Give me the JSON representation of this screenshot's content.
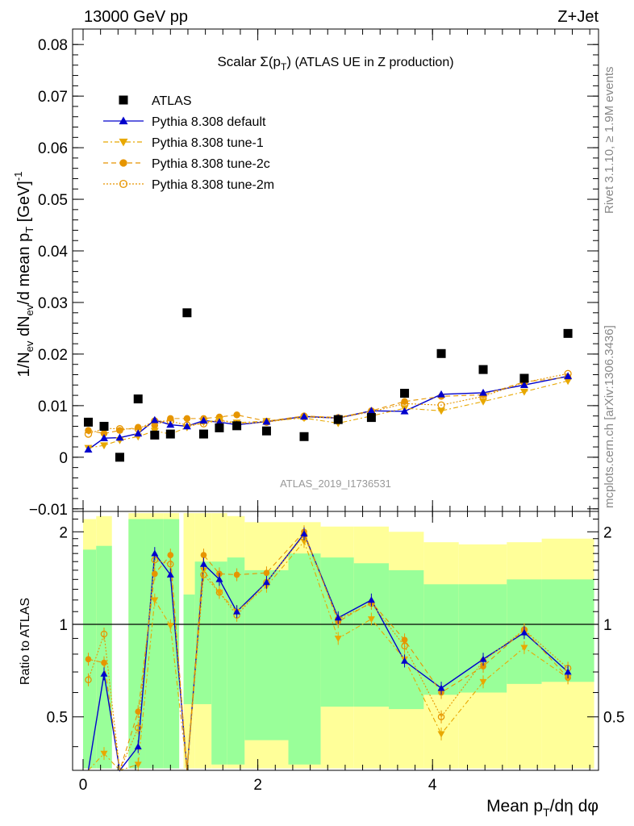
{
  "header": {
    "left": "13000 GeV pp",
    "right": "Z+Jet"
  },
  "side_labels": {
    "rivet": "Rivet 3.1.10, ≥ 1.9M events",
    "mcplots": "mcplots.cern.ch [arXiv:1306.3436]"
  },
  "chart_data": [
    {
      "panel": "main",
      "type": "scatter",
      "title": "Scalar Σ(p_T) (ATLAS UE in Z production)",
      "ylabel": "1/N_ev dN_ev/d mean p_T [GeV]^-1",
      "analysis_label": "ATLAS_2019_I1736531",
      "xlim": [
        -0.12,
        5.9
      ],
      "ylim": [
        -0.0105,
        0.083
      ],
      "y_ticks": [
        "0.08",
        "0.07",
        "0.06",
        "0.05",
        "0.04",
        "0.03",
        "0.02",
        "0.01",
        "0",
        "−0.01"
      ],
      "y_tick_values": [
        0.08,
        0.07,
        0.06,
        0.05,
        0.04,
        0.03,
        0.02,
        0.01,
        0,
        -0.01
      ],
      "x": [
        0.06,
        0.24,
        0.42,
        0.63,
        0.82,
        1.0,
        1.19,
        1.38,
        1.56,
        1.76,
        2.1,
        2.53,
        2.92,
        3.3,
        3.68,
        4.1,
        4.58,
        5.05,
        5.55
      ],
      "series": [
        {
          "name": "ATLAS",
          "style": "data",
          "color": "#000000",
          "values": [
            0.0068,
            0.006,
            0.0,
            0.0113,
            0.0043,
            0.0045,
            0.028,
            0.0045,
            0.0057,
            0.0061,
            0.0051,
            0.004,
            0.0073,
            0.0077,
            0.0124,
            0.0201,
            0.017,
            0.0153,
            0.024
          ]
        },
        {
          "name": "Pythia 8.308 default",
          "style": "triangle-up",
          "color": "#0000cc",
          "values": [
            0.0015,
            0.0037,
            0.0038,
            0.0046,
            0.0072,
            0.0063,
            0.006,
            0.0071,
            0.0068,
            0.0063,
            0.0069,
            0.0079,
            0.0076,
            0.009,
            0.0089,
            0.0122,
            0.0125,
            0.014,
            0.0157
          ]
        },
        {
          "name": "Pythia 8.308 tune-1",
          "style": "triangle-down",
          "color": "#e8a800",
          "values": [
            0.0018,
            0.0023,
            0.0033,
            0.004,
            0.0051,
            0.0045,
            0.0058,
            0.0068,
            0.0072,
            0.0067,
            0.007,
            0.0076,
            0.0066,
            0.008,
            0.0095,
            0.009,
            0.0108,
            0.0127,
            0.0148
          ]
        },
        {
          "name": "Pythia 8.308 tune-2c",
          "style": "circle-filled",
          "color": "#e69500",
          "values": [
            0.0052,
            0.0046,
            0.0052,
            0.0058,
            0.0062,
            0.0075,
            0.0075,
            0.0075,
            0.0078,
            0.0082,
            0.007,
            0.008,
            0.0077,
            0.009,
            0.0108,
            0.0118,
            0.0121,
            0.0146,
            0.0155
          ]
        },
        {
          "name": "Pythia 8.308 tune-2m",
          "style": "circle-open",
          "color": "#e69500",
          "values": [
            0.0045,
            0.0056,
            0.0055,
            0.0055,
            0.007,
            0.007,
            0.0062,
            0.0065,
            0.0072,
            0.0065,
            0.0068,
            0.0078,
            0.0076,
            0.0088,
            0.0104,
            0.0101,
            0.0118,
            0.0145,
            0.0162
          ]
        }
      ]
    },
    {
      "panel": "ratio",
      "type": "line",
      "ylabel": "Ratio to ATLAS",
      "xlabel": "Mean p_T/dη dφ",
      "xlim": [
        -0.12,
        5.9
      ],
      "ylim": [
        0.335,
        2.33
      ],
      "y_ticks": [
        "2",
        "1",
        "0.5"
      ],
      "y_tick_values": [
        2,
        1,
        0.5
      ],
      "x_ticks": [
        "0",
        "2",
        "4"
      ],
      "x_tick_values": [
        0,
        2,
        4
      ],
      "bands": [
        {
          "x0": 0.0,
          "x1": 0.15,
          "green": [
            0.34,
            1.75
          ],
          "yellow": [
            0.34,
            2.2
          ]
        },
        {
          "x0": 0.15,
          "x1": 0.33,
          "green": [
            0.34,
            1.8
          ],
          "yellow": [
            0.34,
            2.25
          ]
        },
        {
          "x0": 0.52,
          "x1": 0.72,
          "green": [
            0.34,
            2.2
          ],
          "yellow": [
            0.34,
            2.3
          ]
        },
        {
          "x0": 0.72,
          "x1": 0.92,
          "green": [
            0.34,
            2.2
          ],
          "yellow": [
            0.34,
            2.3
          ]
        },
        {
          "x0": 0.92,
          "x1": 1.1,
          "green": [
            0.34,
            2.2
          ],
          "yellow": [
            0.34,
            2.3
          ]
        },
        {
          "x0": 1.15,
          "x1": 1.28,
          "green": [
            0.55,
            1.25
          ],
          "yellow": [
            0.34,
            2.3
          ]
        },
        {
          "x0": 1.28,
          "x1": 1.47,
          "green": [
            0.55,
            1.6
          ],
          "yellow": [
            0.34,
            2.3
          ]
        },
        {
          "x0": 1.47,
          "x1": 1.65,
          "green": [
            0.35,
            1.6
          ],
          "yellow": [
            0.34,
            2.3
          ]
        },
        {
          "x0": 1.65,
          "x1": 1.85,
          "green": [
            0.35,
            1.65
          ],
          "yellow": [
            0.34,
            2.25
          ]
        },
        {
          "x0": 1.85,
          "x1": 2.35,
          "green": [
            0.42,
            1.5
          ],
          "yellow": [
            0.34,
            2.15
          ]
        },
        {
          "x0": 2.35,
          "x1": 2.72,
          "green": [
            0.35,
            1.7
          ],
          "yellow": [
            0.34,
            2.15
          ]
        },
        {
          "x0": 2.72,
          "x1": 3.1,
          "green": [
            0.54,
            1.65
          ],
          "yellow": [
            0.34,
            2.08
          ]
        },
        {
          "x0": 3.1,
          "x1": 3.5,
          "green": [
            0.54,
            1.58
          ],
          "yellow": [
            0.34,
            2.08
          ]
        },
        {
          "x0": 3.5,
          "x1": 3.9,
          "green": [
            0.53,
            1.5
          ],
          "yellow": [
            0.34,
            2.0
          ]
        },
        {
          "x0": 3.9,
          "x1": 4.3,
          "green": [
            0.59,
            1.35
          ],
          "yellow": [
            0.34,
            1.85
          ]
        },
        {
          "x0": 4.3,
          "x1": 4.85,
          "green": [
            0.6,
            1.35
          ],
          "yellow": [
            0.34,
            1.82
          ]
        },
        {
          "x0": 4.85,
          "x1": 5.25,
          "green": [
            0.64,
            1.4
          ],
          "yellow": [
            0.34,
            1.85
          ]
        },
        {
          "x0": 5.25,
          "x1": 5.85,
          "green": [
            0.65,
            1.4
          ],
          "yellow": [
            0.34,
            1.9
          ]
        }
      ],
      "series": [
        {
          "name": "Pythia 8.308 default",
          "color": "#0000cc",
          "values": [
            0.3,
            0.69,
            0.25,
            0.4,
            1.7,
            1.45,
            0.22,
            1.57,
            1.4,
            1.1,
            1.37,
            1.97,
            1.05,
            1.2,
            0.76,
            0.62,
            0.77,
            0.94,
            0.7
          ]
        },
        {
          "name": "Pythia 8.308 tune-1",
          "color": "#e8a800",
          "values": [
            0.27,
            0.38,
            0.25,
            0.35,
            1.2,
            0.99,
            0.21,
            1.5,
            1.27,
            1.1,
            1.33,
            1.86,
            0.9,
            1.04,
            0.77,
            0.44,
            0.65,
            0.84,
            0.67
          ]
        },
        {
          "name": "Pythia 8.308 tune-2c",
          "color": "#e69500",
          "values": [
            0.77,
            0.75,
            0.25,
            0.52,
            1.46,
            1.68,
            0.27,
            1.68,
            1.46,
            1.45,
            1.47,
            2.0,
            1.02,
            1.18,
            0.89,
            0.6,
            0.73,
            0.96,
            0.67
          ]
        },
        {
          "name": "Pythia 8.308 tune-2m",
          "color": "#e69500",
          "values": [
            0.66,
            0.93,
            0.25,
            0.46,
            1.62,
            1.57,
            0.23,
            1.45,
            1.27,
            1.07,
            1.37,
            1.95,
            1.04,
            1.17,
            0.85,
            0.5,
            0.76,
            0.96,
            0.72
          ]
        }
      ]
    }
  ]
}
